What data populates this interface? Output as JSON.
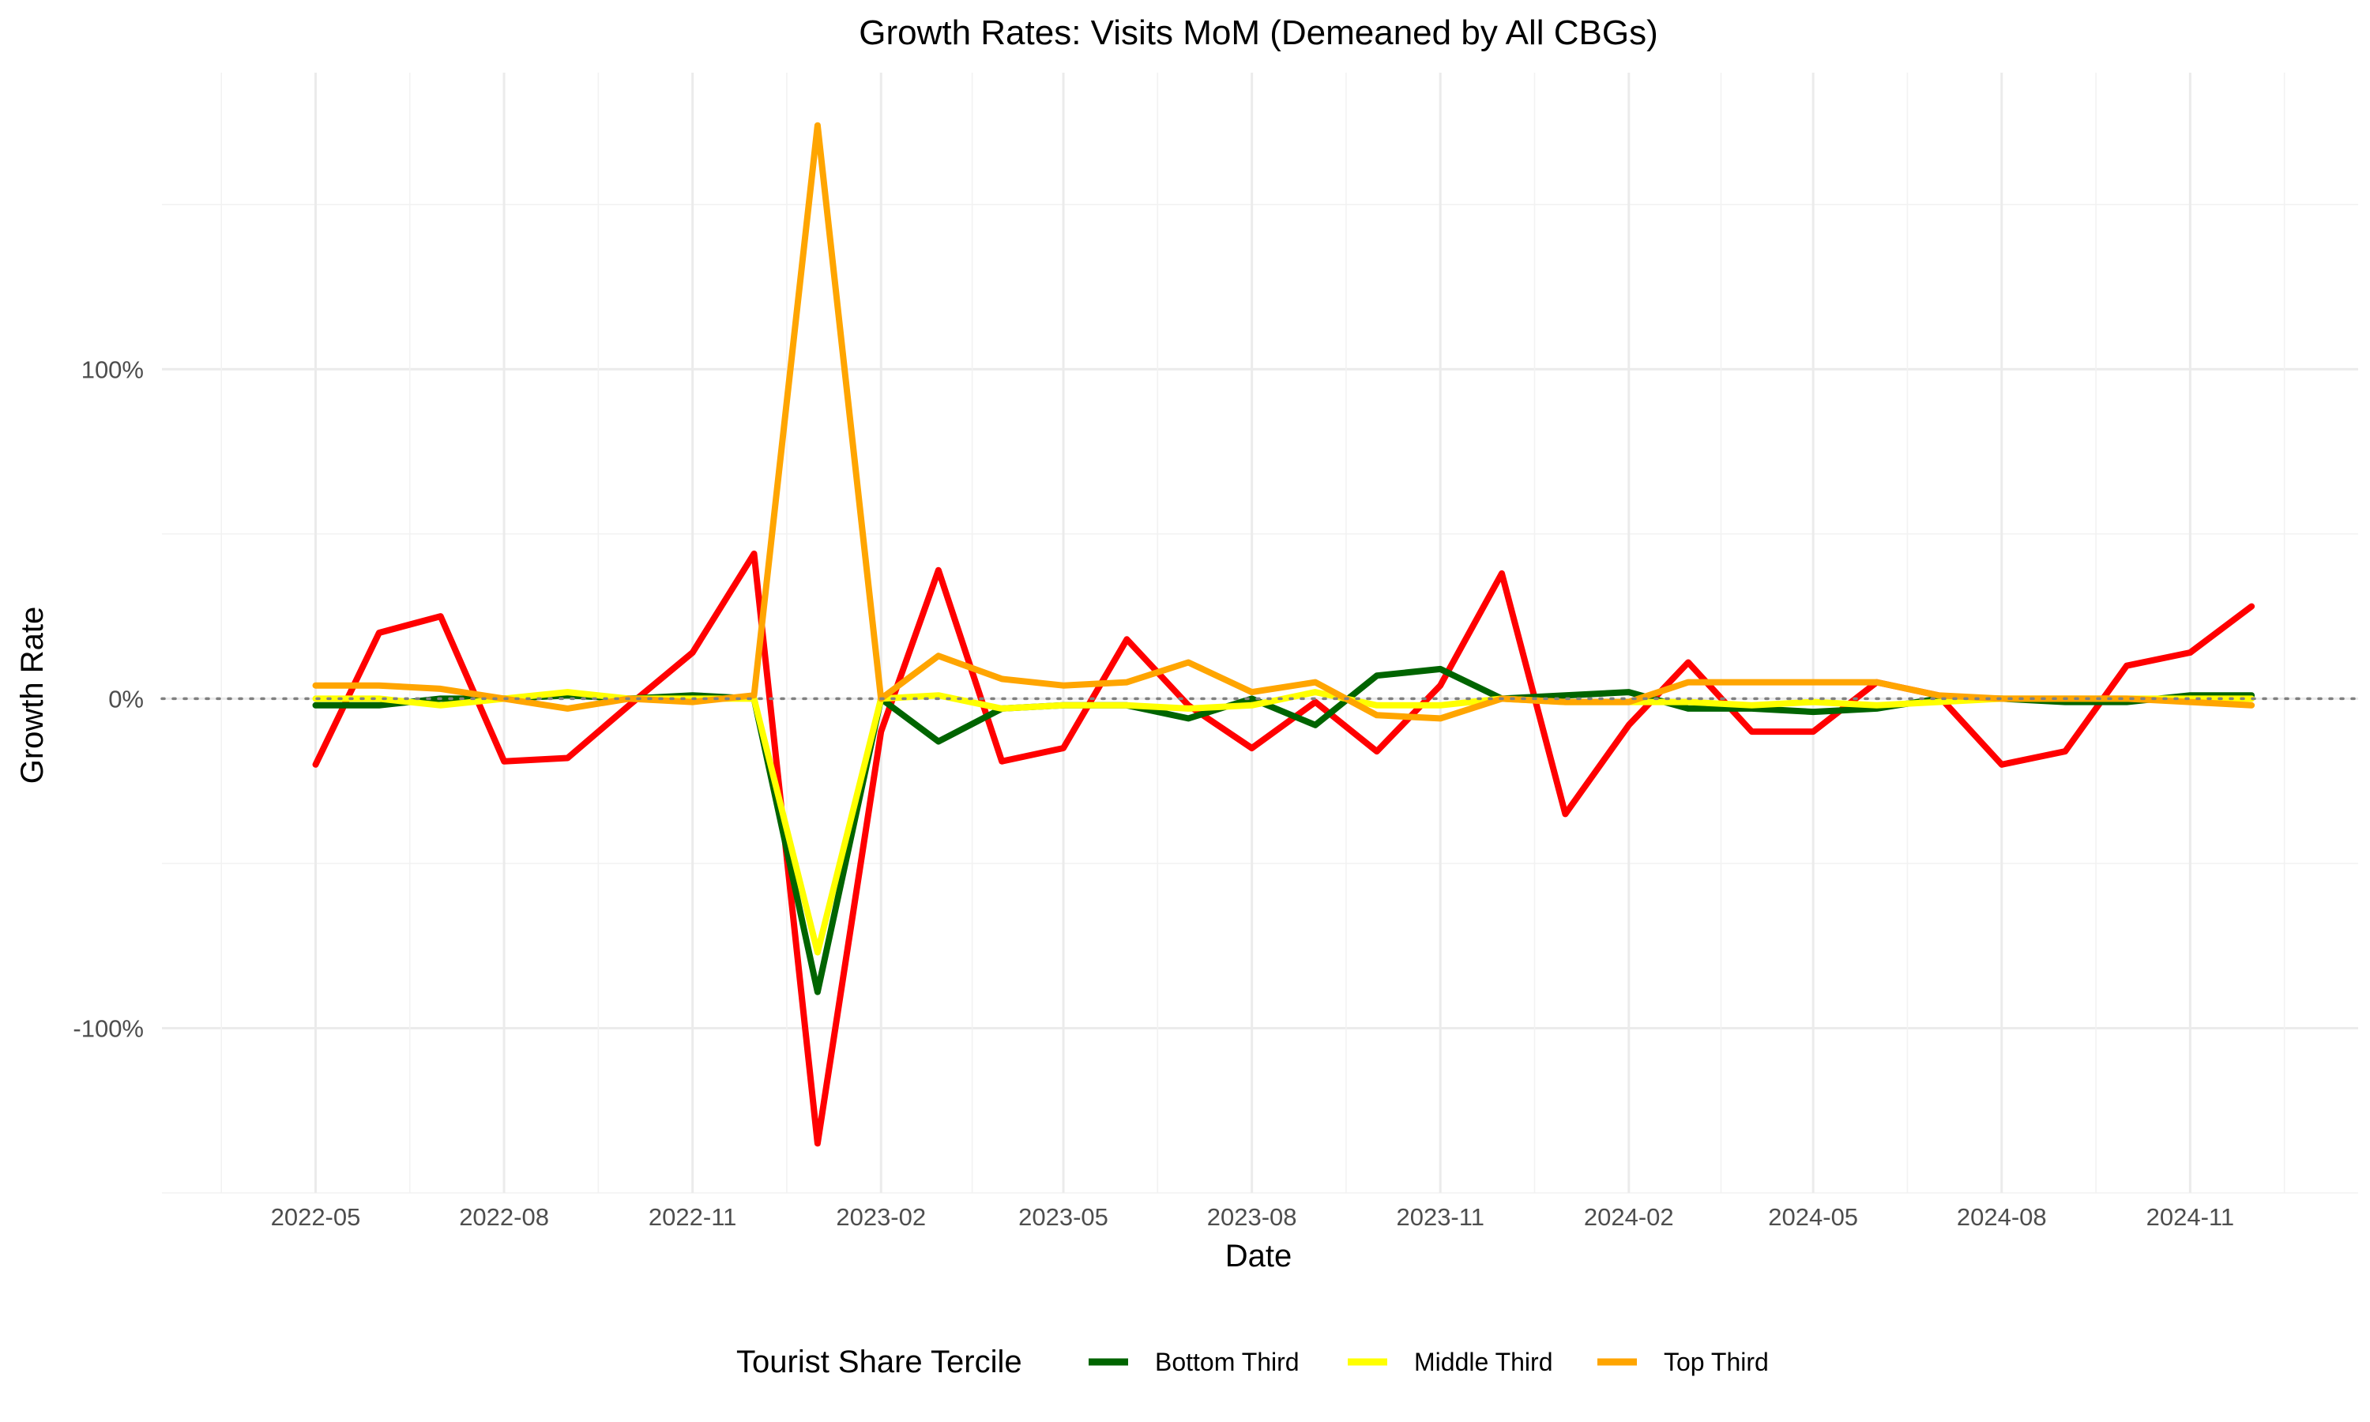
{
  "chart_data": {
    "type": "line",
    "title": "Growth Rates: Visits MoM (Demeaned by All CBGs)",
    "xlabel": "Date",
    "ylabel": "Growth Rate",
    "x_tick_labels": [
      "2022-05",
      "2022-08",
      "2022-11",
      "2023-02",
      "2023-05",
      "2023-08",
      "2023-11",
      "2024-02",
      "2024-05",
      "2024-08",
      "2024-11"
    ],
    "y_tick_labels": [
      "-100%",
      "0%",
      "100%"
    ],
    "y_ticks": [
      -100,
      0,
      100
    ],
    "ylim": [
      -150,
      190
    ],
    "xlim": [
      "2022-02-15",
      "2025-01-22"
    ],
    "grid": true,
    "zero_reference_line": "dotted",
    "legend": {
      "title": "Tourist Share Tercile",
      "position": "bottom",
      "entries": [
        {
          "label": "Bottom Third",
          "color": "#006400"
        },
        {
          "label": "Middle Third",
          "color": "#FFFF00"
        },
        {
          "label": "Top Third",
          "color": "#FFA500"
        }
      ]
    },
    "x": [
      "2022-05",
      "2022-06",
      "2022-07",
      "2022-08",
      "2022-09",
      "2022-10",
      "2022-11",
      "2022-12",
      "2023-01",
      "2023-02",
      "2023-03",
      "2023-04",
      "2023-05",
      "2023-06",
      "2023-07",
      "2023-08",
      "2023-09",
      "2023-10",
      "2023-11",
      "2023-12",
      "2024-01",
      "2024-02",
      "2024-03",
      "2024-04",
      "2024-05",
      "2024-06",
      "2024-07",
      "2024-08",
      "2024-09",
      "2024-10",
      "2024-11",
      "2024-12"
    ],
    "series": [
      {
        "color": "#FF0000",
        "values": [
          -20,
          20,
          25,
          -19,
          -18,
          -2,
          14,
          44,
          -135,
          -10,
          39,
          -19,
          -15,
          18,
          -2,
          -15,
          -1,
          -16,
          4,
          38,
          -35,
          -8,
          11,
          -10,
          -10,
          5,
          1,
          -20,
          -16,
          10,
          14,
          28
        ]
      },
      {
        "color": "#006400",
        "values": [
          -2,
          -2,
          0,
          0,
          1,
          0,
          1,
          0,
          -89,
          0,
          -13,
          -3,
          -2,
          -2,
          -6,
          0,
          -8,
          7,
          9,
          0,
          1,
          2,
          -3,
          -3,
          -4,
          -3,
          0,
          0,
          -1,
          -1,
          1,
          1
        ]
      },
      {
        "color": "#FFFF00",
        "values": [
          0,
          0,
          -2,
          0,
          2,
          0,
          0,
          0,
          -77,
          0,
          1,
          -3,
          -2,
          -2,
          -3,
          -2,
          2,
          -2,
          -2,
          0,
          -1,
          -1,
          -1,
          -2,
          -1,
          -2,
          -1,
          0,
          0,
          0,
          0,
          0
        ]
      },
      {
        "color": "#FFA500",
        "values": [
          4,
          4,
          3,
          0,
          -3,
          0,
          -1,
          1,
          174,
          0,
          13,
          6,
          4,
          5,
          11,
          2,
          5,
          -5,
          -6,
          0,
          -1,
          -1,
          5,
          5,
          5,
          5,
          1,
          0,
          0,
          0,
          -1,
          -2
        ]
      }
    ]
  }
}
